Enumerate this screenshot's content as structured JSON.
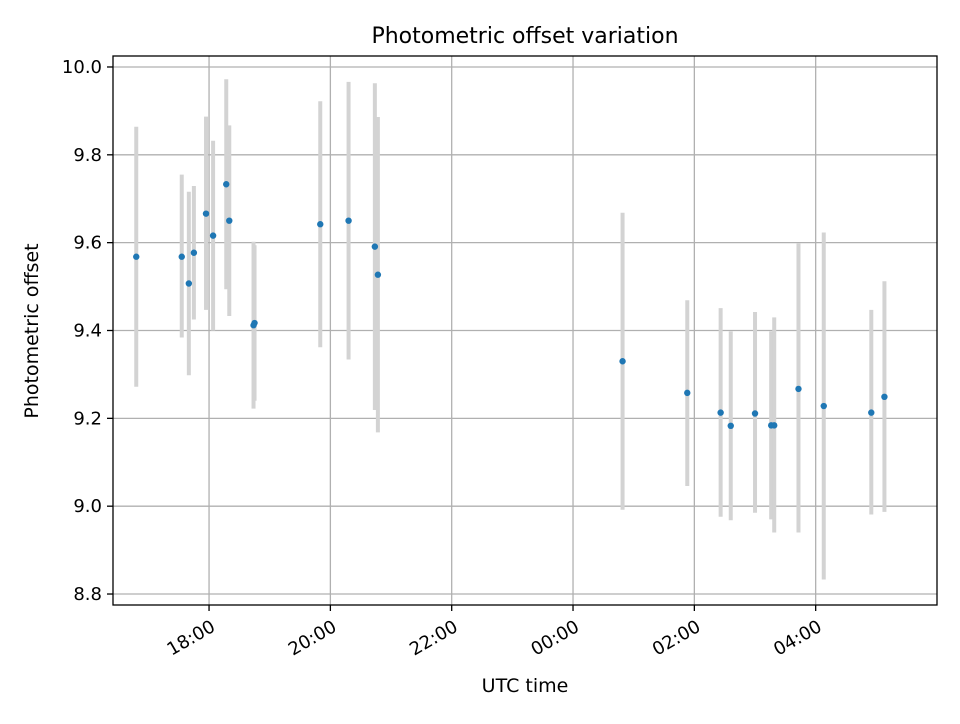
{
  "chart_data": {
    "type": "scatter",
    "title": "Photometric offset variation",
    "xlabel": "UTC time",
    "ylabel": "Photometric offset",
    "x_is_time": true,
    "x_range": [
      "16:25",
      "06:00"
    ],
    "ylim": [
      8.775,
      10.025
    ],
    "x_ticks": [
      "18:00",
      "20:00",
      "22:00",
      "00:00",
      "02:00",
      "04:00"
    ],
    "y_ticks": [
      "8.8",
      "9.0",
      "9.2",
      "9.4",
      "9.6",
      "9.8",
      "10.0"
    ],
    "grid": true,
    "legend": "none",
    "colors": {
      "point": "#1f77b4",
      "errorbar": "#d3d3d3",
      "grid": "#b0b0b0",
      "axes": "#000000"
    },
    "series": [
      {
        "points": [
          {
            "x": "16:48",
            "y": 9.568,
            "err_lo": 9.272,
            "err_hi": 9.864
          },
          {
            "x": "17:33",
            "y": 9.568,
            "err_lo": 9.384,
            "err_hi": 9.755
          },
          {
            "x": "17:40",
            "y": 9.507,
            "err_lo": 9.298,
            "err_hi": 9.716
          },
          {
            "x": "17:45",
            "y": 9.577,
            "err_lo": 9.425,
            "err_hi": 9.729
          },
          {
            "x": "17:57",
            "y": 9.666,
            "err_lo": 9.447,
            "err_hi": 9.887
          },
          {
            "x": "18:04",
            "y": 9.616,
            "err_lo": 9.4,
            "err_hi": 9.832
          },
          {
            "x": "18:17",
            "y": 9.733,
            "err_lo": 9.494,
            "err_hi": 9.972
          },
          {
            "x": "18:20",
            "y": 9.65,
            "err_lo": 9.433,
            "err_hi": 9.867
          },
          {
            "x": "18:44",
            "y": 9.412,
            "err_lo": 9.222,
            "err_hi": 9.602
          },
          {
            "x": "18:45",
            "y": 9.417,
            "err_lo": 9.24,
            "err_hi": 9.594
          },
          {
            "x": "19:50",
            "y": 9.642,
            "err_lo": 9.362,
            "err_hi": 9.922
          },
          {
            "x": "20:18",
            "y": 9.65,
            "err_lo": 9.334,
            "err_hi": 9.966
          },
          {
            "x": "20:44",
            "y": 9.591,
            "err_lo": 9.219,
            "err_hi": 9.963
          },
          {
            "x": "20:47",
            "y": 9.527,
            "err_lo": 9.168,
            "err_hi": 9.886
          },
          {
            "x": "00:49",
            "y": 9.33,
            "err_lo": 8.992,
            "err_hi": 9.668
          },
          {
            "x": "01:53",
            "y": 9.258,
            "err_lo": 9.046,
            "err_hi": 9.469
          },
          {
            "x": "02:26",
            "y": 9.213,
            "err_lo": 8.976,
            "err_hi": 9.451
          },
          {
            "x": "02:36",
            "y": 9.183,
            "err_lo": 8.968,
            "err_hi": 9.398
          },
          {
            "x": "03:00",
            "y": 9.211,
            "err_lo": 8.985,
            "err_hi": 9.442
          },
          {
            "x": "03:16",
            "y": 9.184,
            "err_lo": 8.97,
            "err_hi": 9.398
          },
          {
            "x": "03:19",
            "y": 9.184,
            "err_lo": 8.94,
            "err_hi": 9.43
          },
          {
            "x": "03:43",
            "y": 9.267,
            "err_lo": 8.94,
            "err_hi": 9.598
          },
          {
            "x": "04:08",
            "y": 9.228,
            "err_lo": 8.833,
            "err_hi": 9.623
          },
          {
            "x": "04:55",
            "y": 9.213,
            "err_lo": 8.981,
            "err_hi": 9.447
          },
          {
            "x": "05:08",
            "y": 9.249,
            "err_lo": 8.987,
            "err_hi": 9.512
          }
        ]
      }
    ]
  }
}
